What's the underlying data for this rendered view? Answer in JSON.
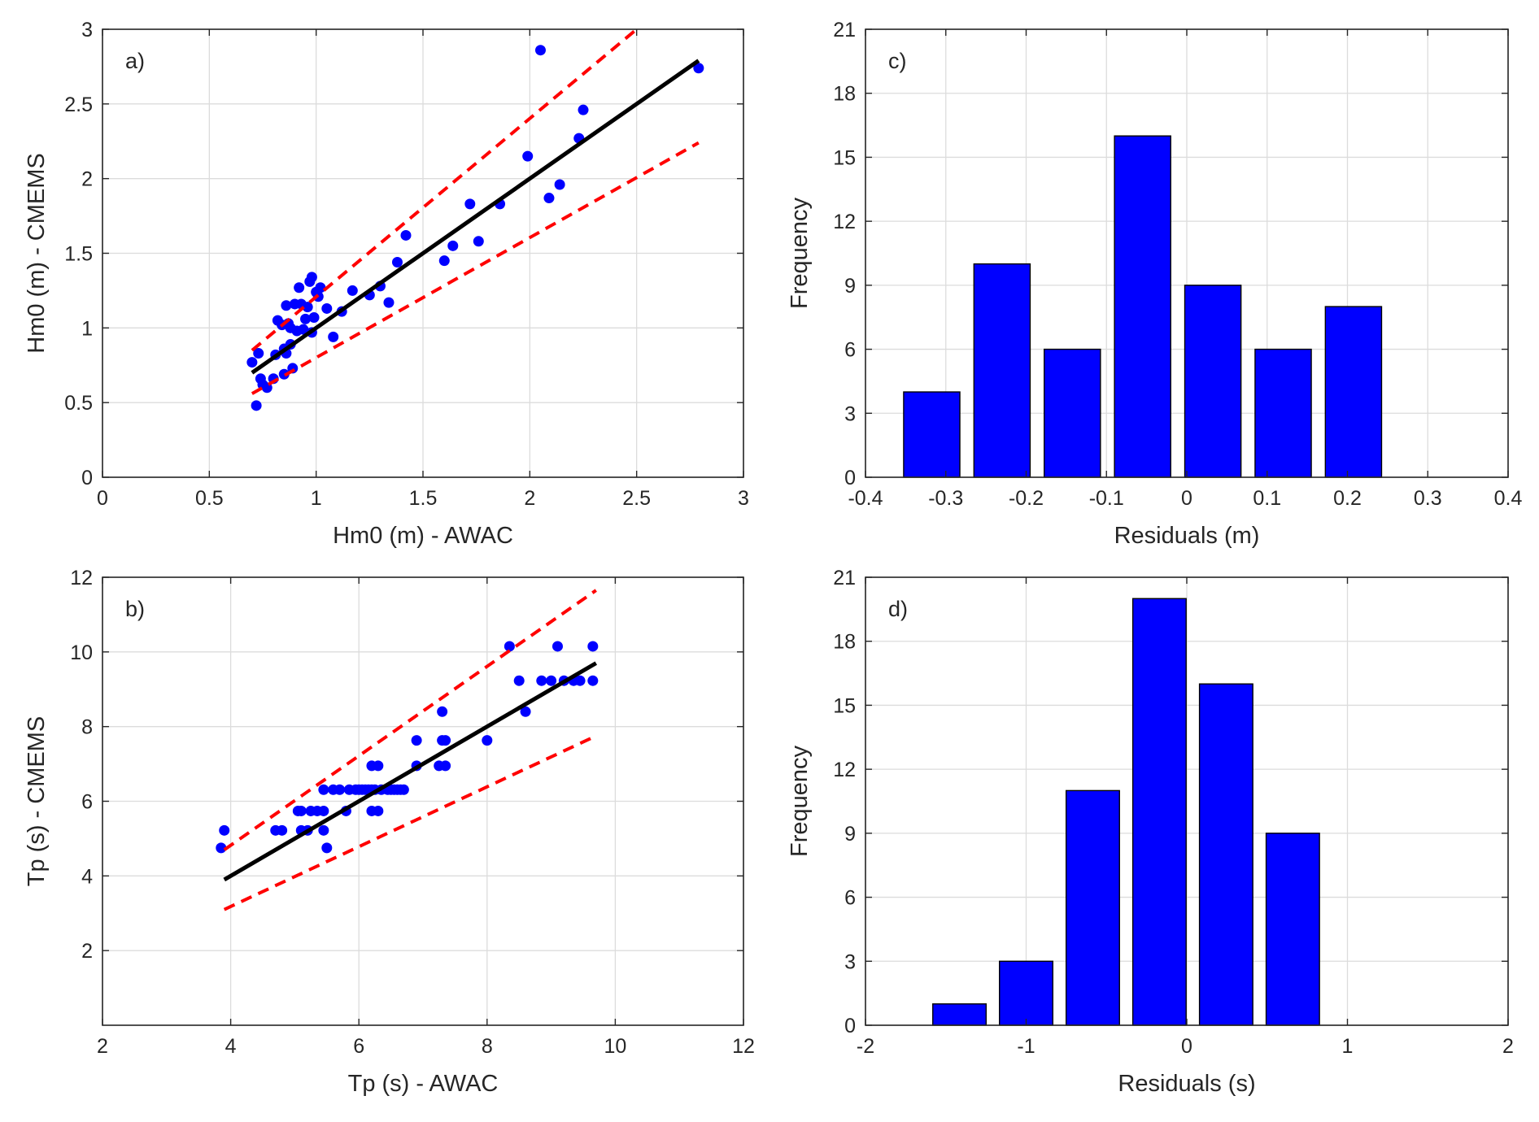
{
  "chart_data": [
    {
      "id": "a",
      "type": "scatter",
      "panel_label": "a)",
      "xlabel": "Hm0 (m) - AWAC",
      "ylabel": "Hm0 (m) - CMEMS",
      "xlim": [
        0,
        3
      ],
      "ylim": [
        0,
        3
      ],
      "xticks": [
        0,
        0.5,
        1,
        1.5,
        2,
        2.5,
        3
      ],
      "yticks": [
        0,
        0.5,
        1,
        1.5,
        2,
        2.5,
        3
      ],
      "xtick_labels": [
        "0",
        "0.5",
        "1",
        "1.5",
        "2",
        "2.5",
        "3"
      ],
      "ytick_labels": [
        "0",
        "0.5",
        "1",
        "1.5",
        "2",
        "2.5",
        "3"
      ],
      "grid": true,
      "colors": {
        "points": "#0000ff",
        "fit": "#000000",
        "bounds": "#ff0000"
      },
      "points": [
        [
          0.7,
          0.77
        ],
        [
          0.72,
          0.48
        ],
        [
          0.73,
          0.83
        ],
        [
          0.74,
          0.66
        ],
        [
          0.75,
          0.62
        ],
        [
          0.77,
          0.6
        ],
        [
          0.8,
          0.66
        ],
        [
          0.81,
          0.82
        ],
        [
          0.82,
          1.05
        ],
        [
          0.84,
          1.02
        ],
        [
          0.85,
          0.86
        ],
        [
          0.85,
          0.69
        ],
        [
          0.86,
          1.15
        ],
        [
          0.86,
          0.83
        ],
        [
          0.87,
          1.03
        ],
        [
          0.88,
          0.89
        ],
        [
          0.88,
          1.0
        ],
        [
          0.89,
          0.73
        ],
        [
          0.9,
          1.16
        ],
        [
          0.91,
          0.98
        ],
        [
          0.92,
          1.27
        ],
        [
          0.93,
          1.16
        ],
        [
          0.94,
          0.99
        ],
        [
          0.95,
          1.06
        ],
        [
          0.96,
          1.14
        ],
        [
          0.97,
          1.31
        ],
        [
          0.98,
          1.34
        ],
        [
          0.98,
          0.97
        ],
        [
          0.99,
          1.07
        ],
        [
          1.0,
          1.24
        ],
        [
          1.01,
          1.21
        ],
        [
          1.02,
          1.27
        ],
        [
          1.05,
          1.13
        ],
        [
          1.08,
          0.94
        ],
        [
          1.12,
          1.11
        ],
        [
          1.17,
          1.25
        ],
        [
          1.25,
          1.22
        ],
        [
          1.3,
          1.28
        ],
        [
          1.34,
          1.17
        ],
        [
          1.38,
          1.44
        ],
        [
          1.42,
          1.62
        ],
        [
          1.6,
          1.45
        ],
        [
          1.64,
          1.55
        ],
        [
          1.72,
          1.83
        ],
        [
          1.76,
          1.58
        ],
        [
          1.86,
          1.83
        ],
        [
          1.99,
          2.15
        ],
        [
          2.05,
          2.86
        ],
        [
          2.09,
          1.87
        ],
        [
          2.14,
          1.96
        ],
        [
          2.23,
          2.27
        ],
        [
          2.25,
          2.46
        ],
        [
          2.79,
          2.74
        ]
      ],
      "fit_line": [
        [
          0.7,
          0.7
        ],
        [
          2.79,
          2.79
        ]
      ],
      "upper_bound": [
        [
          0.7,
          0.85
        ],
        [
          2.5,
          3.0
        ]
      ],
      "lower_bound": [
        [
          0.7,
          0.56
        ],
        [
          2.79,
          2.24
        ]
      ]
    },
    {
      "id": "b",
      "type": "scatter",
      "panel_label": "b)",
      "xlabel": "Tp (s) - AWAC",
      "ylabel": "Tp (s) - CMEMS",
      "xlim": [
        2,
        12
      ],
      "ylim": [
        0,
        12
      ],
      "xticks": [
        2,
        4,
        6,
        8,
        10,
        12
      ],
      "yticks": [
        2,
        4,
        6,
        8,
        10,
        12
      ],
      "xtick_labels": [
        "2",
        "4",
        "6",
        "8",
        "10",
        "12"
      ],
      "ytick_labels": [
        "2",
        "4",
        "6",
        "8",
        "10",
        "12"
      ],
      "grid": true,
      "colors": {
        "points": "#0000ff",
        "fit": "#000000",
        "bounds": "#ff0000"
      },
      "points": [
        [
          3.85,
          4.75
        ],
        [
          3.9,
          5.22
        ],
        [
          4.7,
          5.22
        ],
        [
          4.8,
          5.22
        ],
        [
          5.05,
          5.74
        ],
        [
          5.1,
          5.74
        ],
        [
          5.1,
          5.22
        ],
        [
          5.2,
          5.22
        ],
        [
          5.25,
          5.74
        ],
        [
          5.35,
          5.74
        ],
        [
          5.45,
          5.74
        ],
        [
          5.45,
          6.31
        ],
        [
          5.45,
          5.22
        ],
        [
          5.5,
          4.75
        ],
        [
          5.6,
          6.31
        ],
        [
          5.7,
          6.31
        ],
        [
          5.8,
          5.74
        ],
        [
          5.85,
          6.31
        ],
        [
          5.95,
          6.31
        ],
        [
          6.0,
          6.31
        ],
        [
          6.05,
          6.31
        ],
        [
          6.1,
          6.31
        ],
        [
          6.15,
          6.31
        ],
        [
          6.2,
          6.31
        ],
        [
          6.2,
          6.95
        ],
        [
          6.2,
          5.74
        ],
        [
          6.25,
          6.31
        ],
        [
          6.3,
          6.95
        ],
        [
          6.3,
          5.74
        ],
        [
          6.35,
          6.31
        ],
        [
          6.45,
          6.31
        ],
        [
          6.5,
          6.31
        ],
        [
          6.55,
          6.31
        ],
        [
          6.6,
          6.31
        ],
        [
          6.65,
          6.31
        ],
        [
          6.7,
          6.31
        ],
        [
          6.9,
          6.95
        ],
        [
          6.9,
          7.63
        ],
        [
          7.25,
          6.95
        ],
        [
          7.3,
          7.63
        ],
        [
          7.3,
          8.4
        ],
        [
          7.35,
          6.95
        ],
        [
          7.35,
          7.63
        ],
        [
          8.0,
          7.63
        ],
        [
          8.35,
          10.15
        ],
        [
          8.5,
          9.23
        ],
        [
          8.6,
          8.4
        ],
        [
          8.85,
          9.23
        ],
        [
          9.0,
          9.23
        ],
        [
          9.1,
          10.15
        ],
        [
          9.2,
          9.23
        ],
        [
          9.35,
          9.23
        ],
        [
          9.45,
          9.23
        ],
        [
          9.65,
          10.15
        ],
        [
          9.65,
          9.23
        ]
      ],
      "fit_line": [
        [
          3.9,
          3.9
        ],
        [
          9.7,
          9.7
        ]
      ],
      "upper_bound": [
        [
          3.9,
          4.7
        ],
        [
          9.7,
          11.65
        ]
      ],
      "lower_bound": [
        [
          3.9,
          3.1
        ],
        [
          9.7,
          7.75
        ]
      ]
    },
    {
      "id": "c",
      "type": "bar",
      "panel_label": "c)",
      "xlabel": "Residuals (m)",
      "ylabel": "Frequency",
      "xlim": [
        -0.4,
        0.4
      ],
      "ylim": [
        0,
        21
      ],
      "xticks": [
        -0.4,
        -0.3,
        -0.2,
        -0.1,
        0,
        0.1,
        0.2,
        0.3,
        0.4
      ],
      "yticks": [
        0,
        3,
        6,
        9,
        12,
        15,
        18,
        21
      ],
      "xtick_labels": [
        "-0.4",
        "-0.3",
        "-0.2",
        "-0.1",
        "0",
        "0.1",
        "0.2",
        "0.3",
        "0.4"
      ],
      "ytick_labels": [
        "0",
        "3",
        "6",
        "9",
        "12",
        "15",
        "18",
        "21"
      ],
      "grid": true,
      "colors": {
        "bars": "#0000ff",
        "bar_edge": "#000000"
      },
      "bin_width": 0.0875,
      "bar_width_fraction": 0.8,
      "bin_centers": [
        -0.3175,
        -0.23,
        -0.1425,
        -0.055,
        0.0325,
        0.12,
        0.2075
      ],
      "values": [
        4,
        10,
        6,
        16,
        9,
        6,
        8
      ]
    },
    {
      "id": "d",
      "type": "bar",
      "panel_label": "d)",
      "xlabel": "Residuals (s)",
      "ylabel": "Frequency",
      "xlim": [
        -2,
        2
      ],
      "ylim": [
        0,
        21
      ],
      "xticks": [
        -2,
        -1,
        0,
        1,
        2
      ],
      "yticks": [
        0,
        3,
        6,
        9,
        12,
        15,
        18,
        21
      ],
      "xtick_labels": [
        "-2",
        "-1",
        "0",
        "1",
        "2"
      ],
      "ytick_labels": [
        "0",
        "3",
        "6",
        "9",
        "12",
        "15",
        "18",
        "21"
      ],
      "grid": true,
      "colors": {
        "bars": "#0000ff",
        "bar_edge": "#000000"
      },
      "bin_width": 0.415,
      "bar_width_fraction": 0.8,
      "bin_centers": [
        -1.415,
        -1.0,
        -0.585,
        -0.17,
        0.245,
        0.66
      ],
      "values": [
        1,
        3,
        11,
        20,
        16,
        9
      ]
    }
  ]
}
